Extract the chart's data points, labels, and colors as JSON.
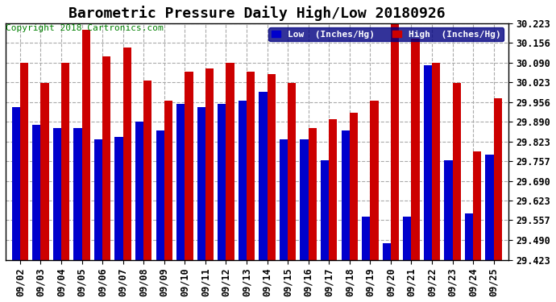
{
  "title": "Barometric Pressure Daily High/Low 20180926",
  "copyright": "Copyright 2018 Cartronics.com",
  "dates": [
    "09/02",
    "09/03",
    "09/04",
    "09/05",
    "09/06",
    "09/07",
    "09/08",
    "09/09",
    "09/10",
    "09/11",
    "09/12",
    "09/13",
    "09/14",
    "09/15",
    "09/16",
    "09/17",
    "09/18",
    "09/19",
    "09/20",
    "09/21",
    "09/22",
    "09/23",
    "09/24",
    "09/25"
  ],
  "low": [
    29.94,
    29.88,
    29.87,
    29.87,
    29.83,
    29.84,
    29.89,
    29.86,
    29.95,
    29.94,
    29.95,
    29.96,
    29.99,
    29.83,
    29.83,
    29.76,
    29.86,
    29.57,
    29.48,
    29.57,
    30.08,
    29.76,
    29.58,
    29.78
  ],
  "high": [
    30.09,
    30.02,
    30.09,
    30.2,
    30.11,
    30.14,
    30.03,
    29.96,
    30.06,
    30.07,
    30.09,
    30.06,
    30.05,
    30.02,
    29.87,
    29.9,
    29.92,
    29.96,
    30.23,
    30.17,
    30.09,
    30.02,
    29.79,
    29.97
  ],
  "ymin": 29.423,
  "ymax": 30.223,
  "yticks": [
    29.423,
    29.49,
    29.557,
    29.623,
    29.69,
    29.757,
    29.823,
    29.89,
    29.956,
    30.023,
    30.09,
    30.156,
    30.223
  ],
  "bg_color": "#ffffff",
  "plot_bg_color": "#ffffff",
  "low_color": "#0000cc",
  "high_color": "#cc0000",
  "grid_color": "#aaaaaa",
  "title_fontsize": 13,
  "copyright_fontsize": 8,
  "tick_fontsize": 8.5,
  "legend_low_label": "Low  (Inches/Hg)",
  "legend_high_label": "High  (Inches/Hg)"
}
